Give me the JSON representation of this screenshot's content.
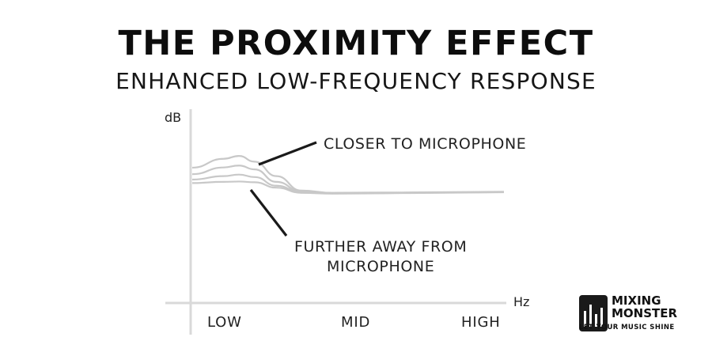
{
  "title": "THE PROXIMITY EFFECT",
  "subtitle": "ENHANCED LOW-FREQUENCY RESPONSE",
  "colors": {
    "axis": "#d9d9d9",
    "curve": "#c8c8c8",
    "leader": "#1a1a1a",
    "text": "#111111"
  },
  "chart_data": {
    "type": "line",
    "ylabel": "dB",
    "xlabel": "Hz",
    "xlim": [
      0,
      100
    ],
    "ylim": [
      0,
      100
    ],
    "categories": [
      "LOW",
      "MID",
      "HIGH"
    ],
    "category_positions": [
      15,
      50,
      85
    ],
    "grid": false,
    "annotations": [
      {
        "text": "CLOSER TO MICROPHONE"
      },
      {
        "text": "FURTHER AWAY FROM MICROPHONE",
        "lines": [
          "FURTHER AWAY FROM",
          "MICROPHONE"
        ]
      }
    ],
    "series": [
      {
        "x": [
          0,
          10,
          15,
          20,
          27,
          35,
          45,
          55,
          70,
          85,
          100
        ],
        "y": [
          70.4,
          75,
          76.5,
          73.5,
          66,
          58.5,
          57.3,
          57.4,
          57.5,
          57.7,
          57.9
        ]
      },
      {
        "x": [
          0,
          10,
          15,
          20,
          27,
          35,
          45,
          55,
          70,
          85,
          100
        ],
        "y": [
          67,
          70.5,
          71.5,
          69.5,
          63,
          58,
          57.2,
          57.3,
          57.4,
          57.6,
          57.8
        ]
      },
      {
        "x": [
          0,
          10,
          15,
          20,
          27,
          35,
          45,
          55,
          70,
          85,
          100
        ],
        "y": [
          64.2,
          66,
          66.8,
          65.5,
          61,
          57.6,
          57,
          57.1,
          57.3,
          57.5,
          57.7
        ]
      },
      {
        "x": [
          0,
          10,
          15,
          20,
          27,
          35,
          45,
          55,
          70,
          85,
          100
        ],
        "y": [
          62.4,
          63,
          63.2,
          62.8,
          60,
          57.3,
          56.9,
          57,
          57.2,
          57.4,
          57.6
        ]
      }
    ]
  },
  "logo": {
    "line1": "MIXING",
    "line2": "MONSTER",
    "tagline": "LET YOUR MUSIC SHINE"
  }
}
